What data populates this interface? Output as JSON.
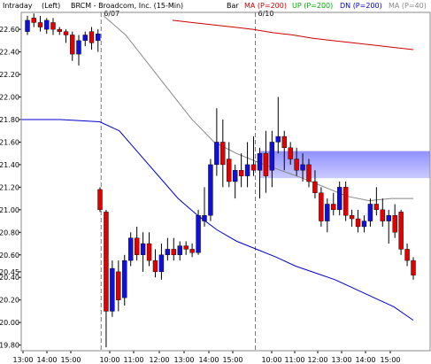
{
  "header": {
    "timeframe": "Intraday",
    "scale": "(Left)",
    "title": "BRCM - Broadcom, Inc. (15-Min)",
    "style": "Bar",
    "legend": [
      {
        "label": "MA (P=200)",
        "color": "#cc0000"
      },
      {
        "label": "UP (P=200)",
        "color": "#00aa00"
      },
      {
        "label": "DN (P=200)",
        "color": "#0000cc"
      },
      {
        "label": "MA (P=40)",
        "color": "#888888"
      }
    ]
  },
  "chart_data": {
    "type": "candlestick",
    "ylim": [
      19.75,
      22.75
    ],
    "y_ticks": [
      "22.60",
      "22.40",
      "22.20",
      "22.00",
      "21.80",
      "21.60",
      "21.40",
      "21.20",
      "21.00",
      "20.80",
      "20.60",
      "20.45",
      "20.40",
      "20.20",
      "20.00",
      "19.80"
    ],
    "x_labels": [
      "13:00",
      "14:00",
      "15:00",
      "10:00",
      "11:00",
      "12:00",
      "13:00",
      "14:00",
      "15:00",
      "10:00",
      "11:00",
      "12:00",
      "13:00",
      "14:00",
      "15:00"
    ],
    "day_markers": [
      "6/07",
      "6/10"
    ],
    "highlight_zone": {
      "low": 21.28,
      "high": 21.52,
      "color": "#8a8aff"
    },
    "candles": [
      {
        "o": 22.58,
        "h": 22.72,
        "l": 22.55,
        "c": 22.68,
        "d": "up"
      },
      {
        "o": 22.7,
        "h": 22.74,
        "l": 22.62,
        "c": 22.66,
        "d": "down"
      },
      {
        "o": 22.66,
        "h": 22.72,
        "l": 22.58,
        "c": 22.62,
        "d": "down"
      },
      {
        "o": 22.6,
        "h": 22.7,
        "l": 22.56,
        "c": 22.68,
        "d": "up"
      },
      {
        "o": 22.66,
        "h": 22.7,
        "l": 22.55,
        "c": 22.6,
        "d": "down"
      },
      {
        "o": 22.6,
        "h": 22.62,
        "l": 22.55,
        "c": 22.58,
        "d": "down"
      },
      {
        "o": 22.58,
        "h": 22.6,
        "l": 22.48,
        "c": 22.55,
        "d": "down"
      },
      {
        "o": 22.55,
        "h": 22.58,
        "l": 22.32,
        "c": 22.38,
        "d": "down"
      },
      {
        "o": 22.38,
        "h": 22.55,
        "l": 22.28,
        "c": 22.5,
        "d": "up"
      },
      {
        "o": 22.5,
        "h": 22.58,
        "l": 22.45,
        "c": 22.55,
        "d": "up"
      },
      {
        "o": 22.58,
        "h": 22.62,
        "l": 22.42,
        "c": 22.48,
        "d": "down"
      },
      {
        "o": 22.5,
        "h": 22.6,
        "l": 22.4,
        "c": 22.56,
        "d": "up"
      },
      {
        "o": 21.18,
        "h": 21.2,
        "l": 20.98,
        "c": 21.0,
        "d": "down"
      },
      {
        "o": 20.98,
        "h": 21.0,
        "l": 19.78,
        "c": 20.1,
        "d": "down"
      },
      {
        "o": 20.1,
        "h": 20.55,
        "l": 20.05,
        "c": 20.48,
        "d": "up"
      },
      {
        "o": 20.45,
        "h": 20.55,
        "l": 20.1,
        "c": 20.2,
        "d": "down"
      },
      {
        "o": 20.22,
        "h": 20.6,
        "l": 20.15,
        "c": 20.55,
        "d": "up"
      },
      {
        "o": 20.55,
        "h": 20.8,
        "l": 20.5,
        "c": 20.75,
        "d": "up"
      },
      {
        "o": 20.75,
        "h": 20.85,
        "l": 20.55,
        "c": 20.6,
        "d": "down"
      },
      {
        "o": 20.6,
        "h": 20.8,
        "l": 20.45,
        "c": 20.7,
        "d": "up"
      },
      {
        "o": 20.7,
        "h": 20.8,
        "l": 20.5,
        "c": 20.55,
        "d": "down"
      },
      {
        "o": 20.55,
        "h": 20.65,
        "l": 20.4,
        "c": 20.45,
        "d": "down"
      },
      {
        "o": 20.45,
        "h": 20.7,
        "l": 20.38,
        "c": 20.6,
        "d": "up"
      },
      {
        "o": 20.6,
        "h": 20.75,
        "l": 20.55,
        "c": 20.65,
        "d": "up"
      },
      {
        "o": 20.65,
        "h": 20.75,
        "l": 20.55,
        "c": 20.6,
        "d": "down"
      },
      {
        "o": 20.6,
        "h": 20.72,
        "l": 20.55,
        "c": 20.68,
        "d": "up"
      },
      {
        "o": 20.68,
        "h": 20.72,
        "l": 20.6,
        "c": 20.65,
        "d": "down"
      },
      {
        "o": 20.65,
        "h": 20.7,
        "l": 20.58,
        "c": 20.62,
        "d": "down"
      },
      {
        "o": 20.62,
        "h": 21.0,
        "l": 20.6,
        "c": 20.95,
        "d": "up"
      },
      {
        "o": 20.9,
        "h": 21.2,
        "l": 20.85,
        "c": 20.95,
        "d": "up"
      },
      {
        "o": 20.95,
        "h": 21.45,
        "l": 20.9,
        "c": 21.4,
        "d": "up"
      },
      {
        "o": 21.4,
        "h": 21.9,
        "l": 21.3,
        "c": 21.6,
        "d": "up"
      },
      {
        "o": 21.6,
        "h": 21.8,
        "l": 21.2,
        "c": 21.4,
        "d": "down"
      },
      {
        "o": 21.45,
        "h": 21.6,
        "l": 21.2,
        "c": 21.25,
        "d": "down"
      },
      {
        "o": 21.25,
        "h": 21.4,
        "l": 21.1,
        "c": 21.35,
        "d": "up"
      },
      {
        "o": 21.35,
        "h": 21.5,
        "l": 21.2,
        "c": 21.3,
        "d": "down"
      },
      {
        "o": 21.3,
        "h": 21.6,
        "l": 21.2,
        "c": 21.4,
        "d": "up"
      },
      {
        "o": 21.4,
        "h": 21.65,
        "l": 21.3,
        "c": 21.35,
        "d": "down"
      },
      {
        "o": 21.35,
        "h": 21.55,
        "l": 21.1,
        "c": 21.5,
        "d": "up"
      },
      {
        "o": 21.5,
        "h": 21.7,
        "l": 21.15,
        "c": 21.3,
        "d": "down"
      },
      {
        "o": 21.35,
        "h": 21.7,
        "l": 21.2,
        "c": 21.6,
        "d": "up"
      },
      {
        "o": 21.6,
        "h": 22.0,
        "l": 21.5,
        "c": 21.65,
        "d": "up"
      },
      {
        "o": 21.65,
        "h": 21.7,
        "l": 21.35,
        "c": 21.55,
        "d": "down"
      },
      {
        "o": 21.55,
        "h": 21.6,
        "l": 21.4,
        "c": 21.45,
        "d": "down"
      },
      {
        "o": 21.45,
        "h": 21.55,
        "l": 21.3,
        "c": 21.35,
        "d": "down"
      },
      {
        "o": 21.35,
        "h": 21.5,
        "l": 21.25,
        "c": 21.4,
        "d": "up"
      },
      {
        "o": 21.4,
        "h": 21.45,
        "l": 21.2,
        "c": 21.25,
        "d": "down"
      },
      {
        "o": 21.25,
        "h": 21.35,
        "l": 21.1,
        "c": 21.15,
        "d": "down"
      },
      {
        "o": 21.15,
        "h": 21.2,
        "l": 20.85,
        "c": 20.9,
        "d": "down"
      },
      {
        "o": 20.9,
        "h": 21.1,
        "l": 20.8,
        "c": 21.05,
        "d": "up"
      },
      {
        "o": 21.05,
        "h": 21.15,
        "l": 20.95,
        "c": 21.0,
        "d": "down"
      },
      {
        "o": 21.0,
        "h": 21.25,
        "l": 20.95,
        "c": 21.2,
        "d": "up"
      },
      {
        "o": 21.2,
        "h": 21.25,
        "l": 20.9,
        "c": 20.95,
        "d": "down"
      },
      {
        "o": 20.95,
        "h": 21.0,
        "l": 20.85,
        "c": 20.92,
        "d": "down"
      },
      {
        "o": 20.92,
        "h": 21.0,
        "l": 20.8,
        "c": 20.85,
        "d": "down"
      },
      {
        "o": 20.85,
        "h": 20.95,
        "l": 20.8,
        "c": 20.9,
        "d": "up"
      },
      {
        "o": 20.9,
        "h": 21.1,
        "l": 20.85,
        "c": 21.05,
        "d": "up"
      },
      {
        "o": 21.05,
        "h": 21.2,
        "l": 20.95,
        "c": 21.0,
        "d": "down"
      },
      {
        "o": 21.0,
        "h": 21.1,
        "l": 20.85,
        "c": 20.9,
        "d": "down"
      },
      {
        "o": 20.9,
        "h": 21.0,
        "l": 20.7,
        "c": 20.95,
        "d": "up"
      },
      {
        "o": 20.95,
        "h": 21.05,
        "l": 20.75,
        "c": 20.8,
        "d": "down"
      },
      {
        "o": 20.98,
        "h": 21.0,
        "l": 20.6,
        "c": 20.65,
        "d": "down"
      },
      {
        "o": 20.65,
        "h": 20.7,
        "l": 20.5,
        "c": 20.55,
        "d": "down"
      },
      {
        "o": 20.55,
        "h": 20.58,
        "l": 20.38,
        "c": 20.42,
        "d": "down"
      }
    ],
    "gap_after_index": 11,
    "ma200": [
      22.68,
      22.66,
      22.64,
      22.62,
      22.6,
      22.57,
      22.55,
      22.52,
      22.5,
      22.48,
      22.46,
      22.44,
      22.42
    ],
    "dn200": [
      21.8,
      21.8,
      21.8,
      21.79,
      21.78,
      21.7,
      21.5,
      21.3,
      21.1,
      20.95,
      20.82,
      20.72,
      20.65,
      20.58,
      20.5,
      20.44,
      20.38,
      20.3,
      20.22,
      20.14,
      20.02
    ],
    "ma40": [
      22.72,
      22.55,
      22.3,
      22.05,
      21.8,
      21.6,
      21.5,
      21.42,
      21.35,
      21.28,
      21.2,
      21.12,
      21.08,
      21.1,
      21.1
    ]
  }
}
